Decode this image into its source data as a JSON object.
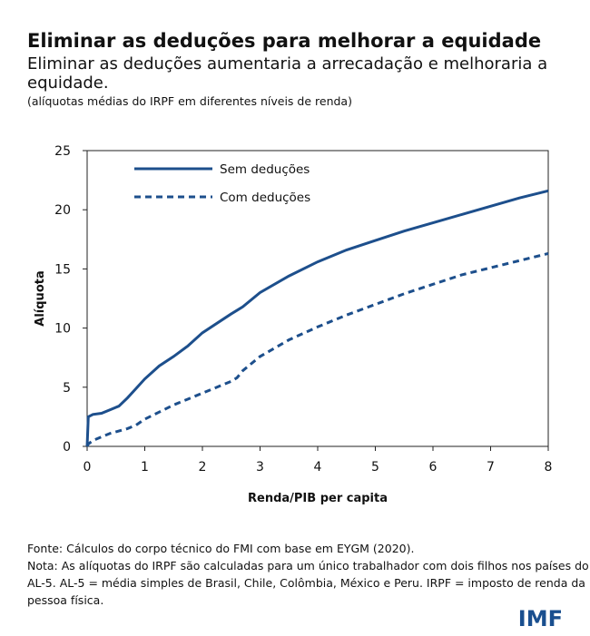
{
  "chart_data": {
    "type": "line",
    "title": "Eliminar as deduções para melhorar a equidade",
    "subtitle": [
      "Eliminar as deduções aumentaria a arrecadação e melhoraria a",
      "equidade."
    ],
    "note_top": "(alíquotas médias do IRPF em diferentes níveis de renda)",
    "x_label": "Renda/PIB per capita",
    "y_label": "Alíquota",
    "x": [
      0,
      0.02,
      0.1,
      0.25,
      0.4,
      0.55,
      0.7,
      0.85,
      1,
      1.25,
      1.5,
      1.75,
      2,
      2.5,
      2.6,
      2.7,
      3,
      3.5,
      4,
      4.5,
      5,
      5.5,
      6,
      6.5,
      7,
      7.5,
      8
    ],
    "series": [
      {
        "name": "Sem deduções",
        "color": "#1d4f8c",
        "linestyle": "solid",
        "values": [
          0,
          2.5,
          2.7,
          2.8,
          3.1,
          3.4,
          4.1,
          4.9,
          5.7,
          6.8,
          7.6,
          8.5,
          9.6,
          11.2,
          11.5,
          11.8,
          13.0,
          14.4,
          15.6,
          16.6,
          17.4,
          18.2,
          18.9,
          19.6,
          20.3,
          21.0,
          21.6
        ]
      },
      {
        "name": "Com deduções",
        "color": "#1d4f8c",
        "linestyle": "dashed",
        "values": [
          0,
          0.2,
          0.5,
          0.8,
          1.1,
          1.3,
          1.5,
          1.8,
          2.3,
          2.9,
          3.5,
          4.0,
          4.5,
          5.5,
          5.8,
          6.4,
          7.6,
          9.0,
          10.1,
          11.1,
          12.0,
          12.9,
          13.7,
          14.5,
          15.1,
          15.7,
          16.3
        ]
      }
    ],
    "xlim": [
      0,
      8
    ],
    "xticks": [
      0,
      1,
      2,
      3,
      4,
      5,
      6,
      7,
      8
    ],
    "ylim": [
      0,
      25
    ],
    "yticks": [
      0,
      5,
      10,
      15,
      20,
      25
    ],
    "legend": "upper left",
    "footer": [
      "Fonte: Cálculos do corpo técnico do FMI com base em EYGM (2020).",
      "Nota: As alíquotas do IRPF são calculadas para um único trabalhador com dois filhos nos países do",
      "AL-5. AL-5 = média simples de Brasil, Chile, Colômbia, México e Peru. IRPF = imposto de renda da",
      "pessoa física."
    ],
    "logo": "IMF"
  }
}
